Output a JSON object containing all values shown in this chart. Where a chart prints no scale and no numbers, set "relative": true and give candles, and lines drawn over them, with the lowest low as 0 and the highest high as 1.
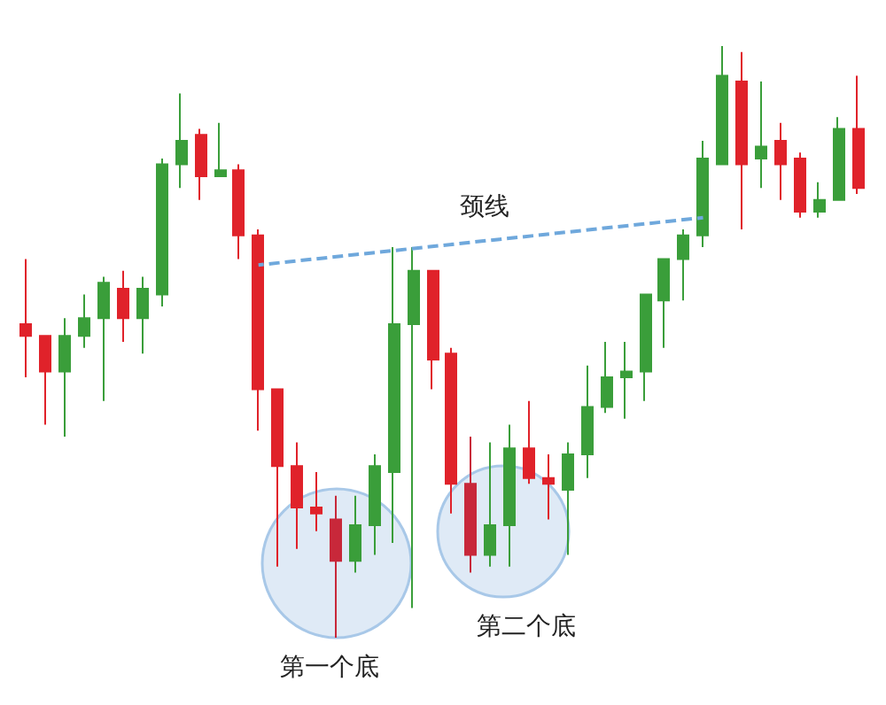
{
  "chart_data": {
    "type": "candlestick",
    "relative": true,
    "categories": [
      null,
      null,
      null,
      null,
      null,
      null,
      null,
      null,
      null,
      null,
      null,
      null,
      null,
      null,
      null,
      null,
      null,
      null,
      null,
      null,
      null,
      null,
      null,
      null,
      null,
      null,
      null,
      null,
      null,
      null,
      null,
      null,
      null,
      null,
      null,
      null,
      null,
      null,
      null,
      null,
      null,
      null,
      null,
      null
    ],
    "ohlc": [
      [
        0.53,
        0.64,
        0.44,
        0.51
      ],
      [
        0.51,
        0.51,
        0.36,
        0.45
      ],
      [
        0.45,
        0.54,
        0.34,
        0.51
      ],
      [
        0.51,
        0.58,
        0.49,
        0.54
      ],
      [
        0.54,
        0.61,
        0.4,
        0.6
      ],
      [
        0.59,
        0.62,
        0.5,
        0.54
      ],
      [
        0.54,
        0.61,
        0.48,
        0.59
      ],
      [
        0.58,
        0.81,
        0.56,
        0.8
      ],
      [
        0.8,
        0.92,
        0.76,
        0.84
      ],
      [
        0.85,
        0.86,
        0.74,
        0.78
      ],
      [
        0.78,
        0.87,
        0.78,
        0.79
      ],
      [
        0.79,
        0.8,
        0.64,
        0.68
      ],
      [
        0.68,
        0.69,
        0.35,
        0.42
      ],
      [
        0.42,
        0.42,
        0.12,
        0.29
      ],
      [
        0.29,
        0.33,
        0.15,
        0.22
      ],
      [
        0.22,
        0.28,
        0.18,
        0.21
      ],
      [
        0.2,
        0.24,
        0,
        0.13
      ],
      [
        0.13,
        0.24,
        0.11,
        0.19
      ],
      [
        0.19,
        0.31,
        0.14,
        0.29
      ],
      [
        0.28,
        0.66,
        0.16,
        0.53
      ],
      [
        0.53,
        0.66,
        0.05,
        0.62
      ],
      [
        0.62,
        0.62,
        0.42,
        0.47
      ],
      [
        0.48,
        0.49,
        0.21,
        0.26
      ],
      [
        0.26,
        0.34,
        0.11,
        0.14
      ],
      [
        0.14,
        0.33,
        0.12,
        0.19
      ],
      [
        0.19,
        0.36,
        0.12,
        0.32
      ],
      [
        0.32,
        0.4,
        0.26,
        0.27
      ],
      [
        0.27,
        0.31,
        0.2,
        0.26
      ],
      [
        0.25,
        0.33,
        0.14,
        0.31
      ],
      [
        0.31,
        0.46,
        0.27,
        0.39
      ],
      [
        0.39,
        0.5,
        0.38,
        0.44
      ],
      [
        0.44,
        0.5,
        0.37,
        0.45
      ],
      [
        0.45,
        0.58,
        0.4,
        0.58
      ],
      [
        0.57,
        0.64,
        0.49,
        0.64
      ],
      [
        0.64,
        0.69,
        0.57,
        0.68
      ],
      [
        0.68,
        0.84,
        0.66,
        0.81
      ],
      [
        0.8,
        1,
        0.8,
        0.95
      ],
      [
        0.94,
        0.99,
        0.69,
        0.8
      ],
      [
        0.81,
        0.94,
        0.76,
        0.83
      ],
      [
        0.84,
        0.87,
        0.74,
        0.8
      ],
      [
        0.81,
        0.82,
        0.71,
        0.72
      ],
      [
        0.72,
        0.77,
        0.71,
        0.74
      ],
      [
        0.74,
        0.88,
        0.74,
        0.86
      ],
      [
        0.86,
        0.95,
        0.75,
        0.76
      ]
    ],
    "colors": [
      "#e0222a",
      "#e0222a",
      "#3a9e3a",
      "#3a9e3a",
      "#3a9e3a",
      "#e0222a",
      "#3a9e3a",
      "#3a9e3a",
      "#3a9e3a",
      "#e0222a",
      "#3a9e3a",
      "#e0222a",
      "#e0222a",
      "#e0222a",
      "#e0222a",
      "#e0222a",
      "#c8283a",
      "#3a9e3a",
      "#3a9e3a",
      "#3a9e3a",
      "#3a9e3a",
      "#e0222a",
      "#e0222a",
      "#c8283a",
      "#3a9e3a",
      "#3a9e3a",
      "#e0222a",
      "#e0222a",
      "#3a9e3a",
      "#3a9e3a",
      "#3a9e3a",
      "#3a9e3a",
      "#3a9e3a",
      "#3a9e3a",
      "#3a9e3a",
      "#3a9e3a",
      "#3a9e3a",
      "#e0222a",
      "#3a9e3a",
      "#e0222a",
      "#e0222a",
      "#3a9e3a",
      "#3a9e3a",
      "#e0222a"
    ],
    "series": [
      {
        "type": "line",
        "name": "颈线",
        "color": "#6fa8dc",
        "line_style": "dashed",
        "values": [
          null,
          null,
          null,
          null,
          null,
          null,
          null,
          null,
          null,
          null,
          null,
          null,
          0.63,
          null,
          null,
          null,
          null,
          null,
          null,
          null,
          null,
          null,
          null,
          null,
          null,
          null,
          null,
          null,
          null,
          null,
          null,
          null,
          null,
          null,
          null,
          0.71,
          null,
          null,
          null,
          null,
          null,
          null,
          null,
          null
        ]
      }
    ],
    "annotations": [
      "第一个底",
      "第二个底"
    ]
  }
}
